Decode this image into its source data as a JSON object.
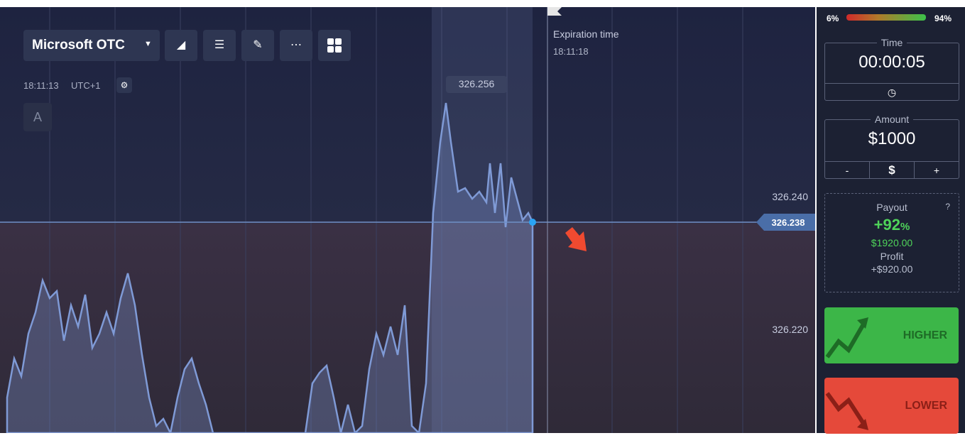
{
  "header": {
    "asset": "Microsoft OTC",
    "clock": "18:11:13",
    "timezone": "UTC+1",
    "drawing_tool": "A"
  },
  "chart": {
    "peak_label": "326.256",
    "expiration_label": "Expiration time",
    "expiration_time": "18:11:18",
    "price_labels": [
      "326.240",
      "326.220"
    ],
    "current_price": "326.238"
  },
  "sidebar": {
    "sentiment_low": "6%",
    "sentiment_high": "94%",
    "time": {
      "label": "Time",
      "value": "00:00:05"
    },
    "amount": {
      "label": "Amount",
      "value": "$1000",
      "minus": "-",
      "currency": "$",
      "plus": "+"
    },
    "payout": {
      "label": "Payout",
      "percent": "+92",
      "percent_sign": "%",
      "total": "$1920.00",
      "profit_label": "Profit",
      "profit": "+$920.00"
    },
    "buttons": {
      "higher": "HIGHER",
      "lower": "LOWER"
    }
  }
}
